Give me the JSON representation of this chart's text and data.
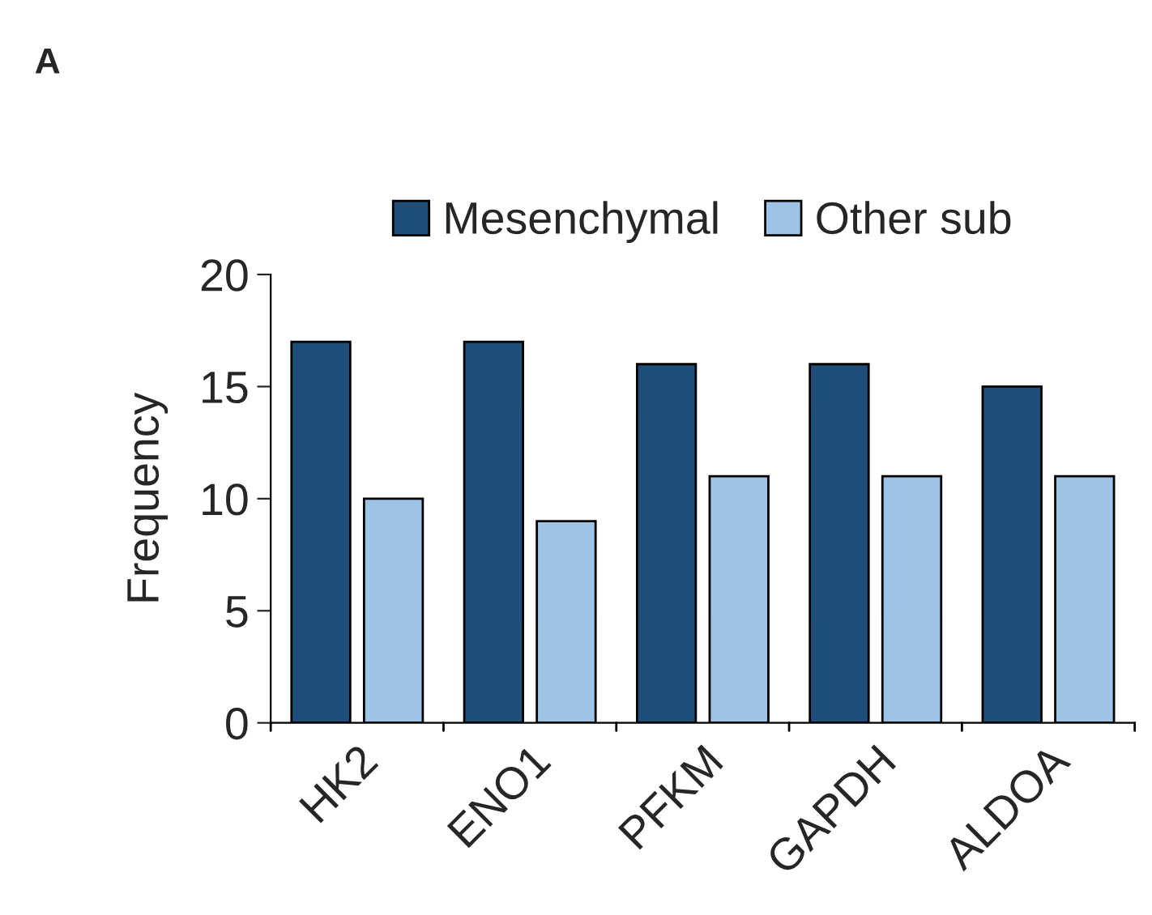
{
  "chart_data": {
    "type": "bar",
    "ylabel": "Frequency",
    "categories": [
      "HK2",
      "ENO1",
      "PFKM",
      "GAPDH",
      "ALDOA"
    ],
    "series": [
      {
        "name": "Mesenchymal",
        "color": "#1f4e79",
        "values": [
          17,
          17,
          16,
          16,
          15
        ]
      },
      {
        "name": "Other sub",
        "color": "#9dc3e6",
        "values": [
          10,
          9,
          11,
          11,
          11
        ]
      }
    ],
    "ylim": [
      0,
      20
    ],
    "yticks": [
      0,
      5,
      10,
      15,
      20
    ],
    "grid": false,
    "legend": "top",
    "annotations": [
      "A"
    ]
  }
}
